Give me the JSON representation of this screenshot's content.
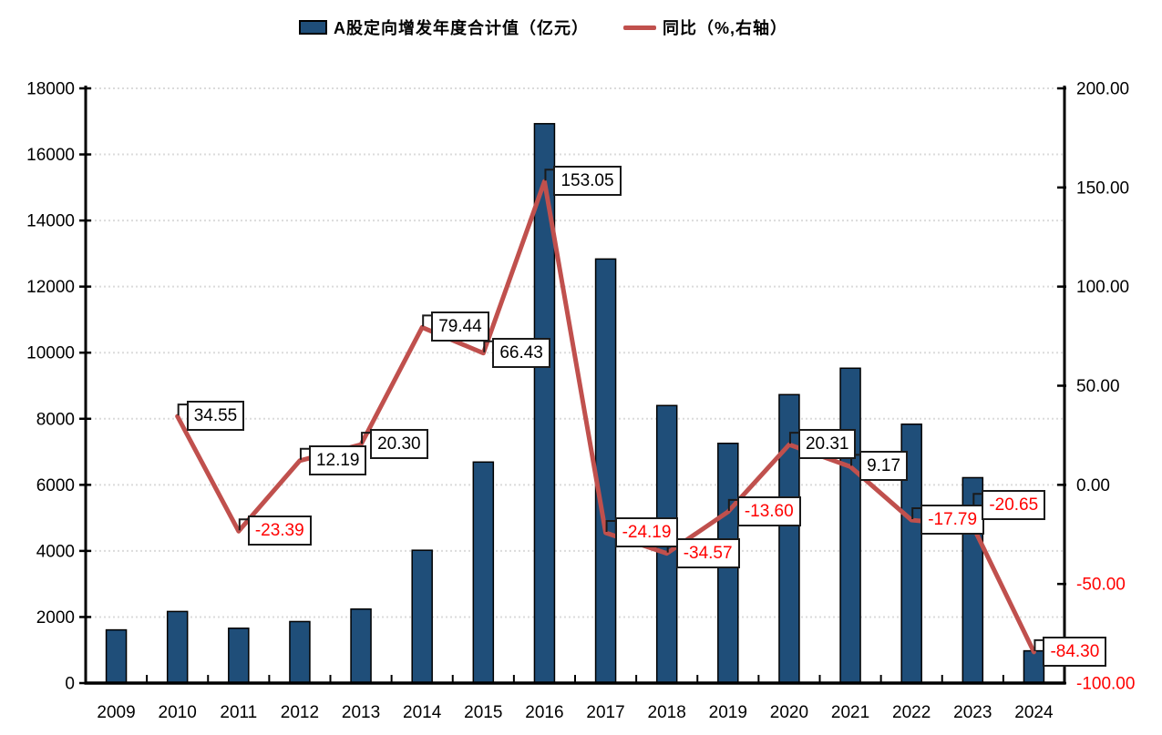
{
  "legend": {
    "bar_label": "A股定向增发年度合计值（亿元）",
    "line_label": "同比（%,右轴）"
  },
  "colors": {
    "bar_fill": "#1F4E79",
    "bar_border": "#000000",
    "line": "#C0504D",
    "negative_text": "#FF0000",
    "axis": "#000000",
    "gridline": "#DBDBDB",
    "label_box_border": "#1a1a1a",
    "label_box_bg": "#FFFFFF"
  },
  "chart_data": {
    "type": "bar+line",
    "title": "",
    "categories": [
      "2009",
      "2010",
      "2011",
      "2012",
      "2013",
      "2014",
      "2015",
      "2016",
      "2017",
      "2018",
      "2019",
      "2020",
      "2021",
      "2022",
      "2023",
      "2024"
    ],
    "series": [
      {
        "name": "A股定向增发年度合计值（亿元）",
        "chart_type": "bar",
        "axis": "left",
        "color": "#1F4E79",
        "values": [
          1610,
          2167,
          1660,
          1862,
          2240,
          4020,
          6690,
          16930,
          12835,
          8400,
          7256,
          8730,
          9530,
          7835,
          6217,
          976
        ]
      },
      {
        "name": "同比（%,右轴）",
        "chart_type": "line",
        "axis": "right",
        "color": "#C0504D",
        "values": [
          null,
          34.55,
          -23.39,
          12.19,
          20.3,
          79.44,
          66.43,
          153.05,
          -24.19,
          -34.57,
          -13.6,
          20.31,
          9.17,
          -17.79,
          -20.65,
          -84.3
        ],
        "labels": [
          null,
          "34.55",
          "-23.39",
          "12.19",
          "20.30",
          "79.44",
          "66.43",
          "153.05",
          "-24.19",
          "-34.57",
          "-13.60",
          "20.31",
          "9.17",
          "-17.79",
          "-20.65",
          "-84.30"
        ]
      }
    ],
    "left_axis": {
      "min": 0,
      "max": 18000,
      "step": 2000,
      "tick_labels": [
        "0",
        "2000",
        "4000",
        "6000",
        "8000",
        "10000",
        "12000",
        "14000",
        "16000",
        "18000"
      ]
    },
    "right_axis": {
      "min": -100,
      "max": 200,
      "step": 50,
      "tick_labels": [
        "-100.00",
        "-50.00",
        "0.00",
        "50.00",
        "100.00",
        "150.00",
        "200.00"
      ]
    },
    "grid": "horizontal-dotted",
    "legend_position": "top-center"
  }
}
